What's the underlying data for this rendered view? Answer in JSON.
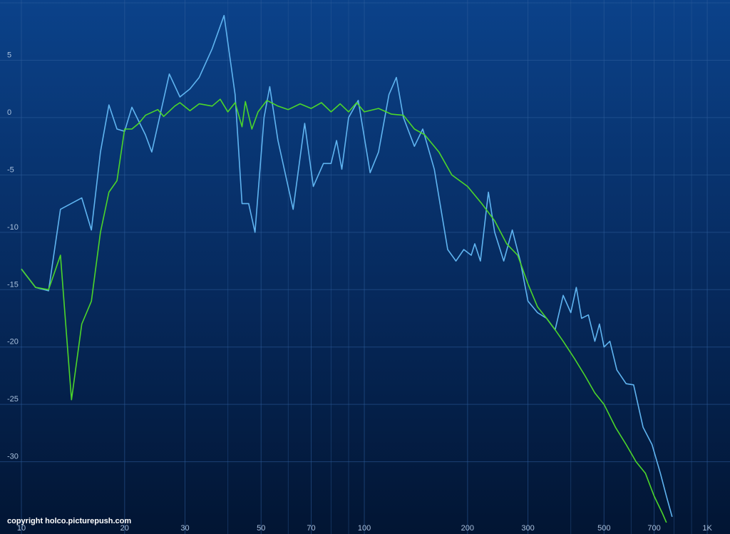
{
  "chart_data": {
    "type": "line",
    "log_x": true,
    "grid": true,
    "xlim": [
      10,
      1165
    ],
    "ylim": [
      -36.3,
      10.25
    ],
    "xticks": [
      10,
      20,
      30,
      50,
      70,
      100,
      200,
      300,
      500,
      700,
      {
        "value": 1000,
        "label": "1K"
      }
    ],
    "xminor": [
      40,
      60,
      80,
      90,
      400,
      600,
      800,
      900
    ],
    "yticks": [
      10,
      5,
      0,
      -5,
      -10,
      -15,
      -20,
      -25,
      -30
    ],
    "copyright": "copyright holco.picturepush.com",
    "series": [
      {
        "color": "#5fb4f0",
        "x": [
          10,
          11,
          12,
          13,
          15,
          16,
          17,
          18,
          19,
          20,
          21,
          23,
          24,
          27,
          29,
          31,
          33,
          36,
          39,
          42,
          44,
          46,
          48,
          51,
          53,
          56,
          62,
          67,
          71,
          76,
          80,
          83,
          86,
          90,
          96,
          104,
          110,
          118,
          124,
          130,
          140,
          148,
          160,
          175,
          185,
          195,
          205,
          210,
          218,
          230,
          240,
          255,
          270,
          285,
          300,
          320,
          340,
          360,
          380,
          400,
          415,
          430,
          450,
          470,
          485,
          500,
          520,
          545,
          580,
          610,
          650,
          690,
          730,
          760,
          790
        ],
        "values": [
          -13.2,
          -14.8,
          -15.1,
          -8,
          -7,
          -9.8,
          -3,
          1.1,
          -1,
          -1.2,
          0.9,
          -1.5,
          -3,
          3.8,
          1.8,
          2.5,
          3.5,
          6,
          8.9,
          2,
          -7.5,
          -7.5,
          -10,
          0,
          2.7,
          -2,
          -8,
          -0.5,
          -6,
          -4,
          -4,
          -2,
          -4.5,
          0,
          1.5,
          -4.8,
          -3,
          2,
          3.5,
          0,
          -2.5,
          -1,
          -4.5,
          -11.5,
          -12.5,
          -11.5,
          -12,
          -11,
          -12.5,
          -6.5,
          -10,
          -12.5,
          -9.8,
          -12.5,
          -16,
          -17,
          -17.5,
          -18.5,
          -15.5,
          -17,
          -14.8,
          -17.5,
          -17.2,
          -19.5,
          -18,
          -20,
          -19.5,
          -22,
          -23.2,
          -23.3,
          -27,
          -28.5,
          -31,
          -33,
          -34.8
        ]
      },
      {
        "color": "#4cd62a",
        "x": [
          10,
          11,
          12,
          13,
          14,
          15,
          16,
          17,
          18,
          19,
          20,
          21,
          22,
          23,
          25,
          26,
          28,
          29,
          31,
          33,
          36,
          38,
          40,
          42,
          44,
          45,
          47,
          49,
          52,
          56,
          60,
          65,
          70,
          75,
          80,
          85,
          90,
          95,
          100,
          110,
          120,
          130,
          140,
          150,
          165,
          180,
          200,
          220,
          240,
          260,
          280,
          300,
          320,
          340,
          360,
          380,
          410,
          440,
          470,
          500,
          540,
          580,
          620,
          660,
          700,
          740,
          760
        ],
        "values": [
          -13.2,
          -14.8,
          -15,
          -12,
          -24.6,
          -18,
          -16,
          -10,
          -6.5,
          -5.5,
          -1,
          -1,
          -0.5,
          0.2,
          0.7,
          0.1,
          1,
          1.3,
          0.6,
          1.2,
          1,
          1.6,
          0.5,
          1.3,
          -0.8,
          1.4,
          -1,
          0.5,
          1.5,
          1,
          0.7,
          1.2,
          0.8,
          1.3,
          0.5,
          1.2,
          0.5,
          1.3,
          0.5,
          0.8,
          0.3,
          0.2,
          -1,
          -1.5,
          -3,
          -5,
          -6,
          -7.5,
          -9,
          -11,
          -12,
          -14.5,
          -16.5,
          -17.5,
          -18.5,
          -19.5,
          -21,
          -22.5,
          -24,
          -25,
          -27,
          -28.5,
          -30,
          -31,
          -33,
          -34.5,
          -35.3
        ]
      }
    ]
  }
}
